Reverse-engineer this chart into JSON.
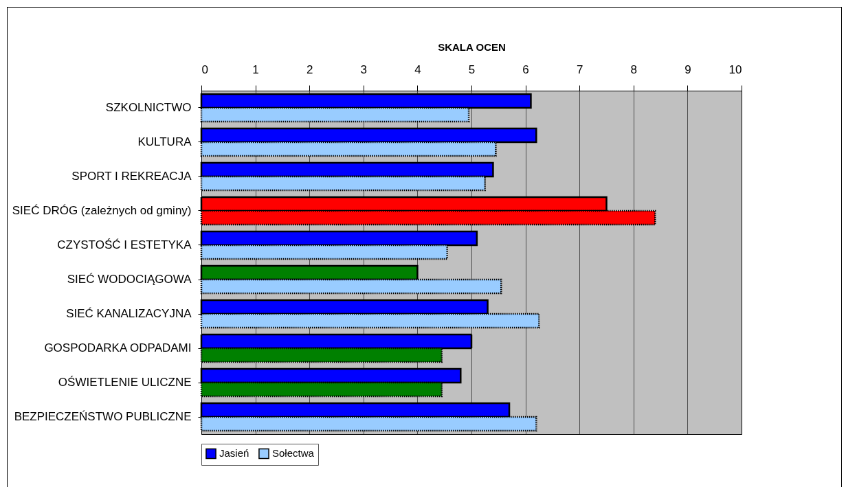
{
  "chart_data": {
    "type": "bar",
    "orientation": "horizontal",
    "xlabel": "SKALA OCEN",
    "categories": [
      "SZKOLNICTWO",
      "KULTURA ",
      "SPORT I REKREACJA",
      "SIEĆ DRÓG (zależnych od gminy)",
      "CZYSTOŚĆ I ESTETYKA",
      "SIEĆ WODOCIĄGOWA",
      "SIEĆ KANALIZACYJNA",
      "GOSPODARKA ODPADAMI",
      "OŚWIETLENIE ULICZNE",
      "BEZPIECZEŃSTWO PUBLICZNE"
    ],
    "series": [
      {
        "name": "Jasień",
        "color": "#0000ff",
        "colors": [
          "#0000ff",
          "#0000ff",
          "#0000ff",
          "#ff0000",
          "#0000ff",
          "#008000",
          "#0000ff",
          "#0000ff",
          "#0000ff",
          "#0000ff"
        ],
        "values": [
          6.1,
          6.2,
          5.4,
          7.5,
          5.1,
          4.0,
          5.3,
          5.0,
          4.8,
          5.7
        ]
      },
      {
        "name": "Sołectwa",
        "color": "#99ccff",
        "colors": [
          "#99ccff",
          "#99ccff",
          "#99ccff",
          "#ff0000",
          "#99ccff",
          "#99ccff",
          "#99ccff",
          "#008000",
          "#008000",
          "#99ccff"
        ],
        "values": [
          4.95,
          5.45,
          5.25,
          8.4,
          4.55,
          5.55,
          6.25,
          4.45,
          4.45,
          6.2
        ]
      }
    ],
    "xlim": [
      0,
      10
    ],
    "xticks": [
      0,
      1,
      2,
      3,
      4,
      5,
      6,
      7,
      8,
      9,
      10
    ],
    "grid": "x",
    "legend": "bottom"
  }
}
